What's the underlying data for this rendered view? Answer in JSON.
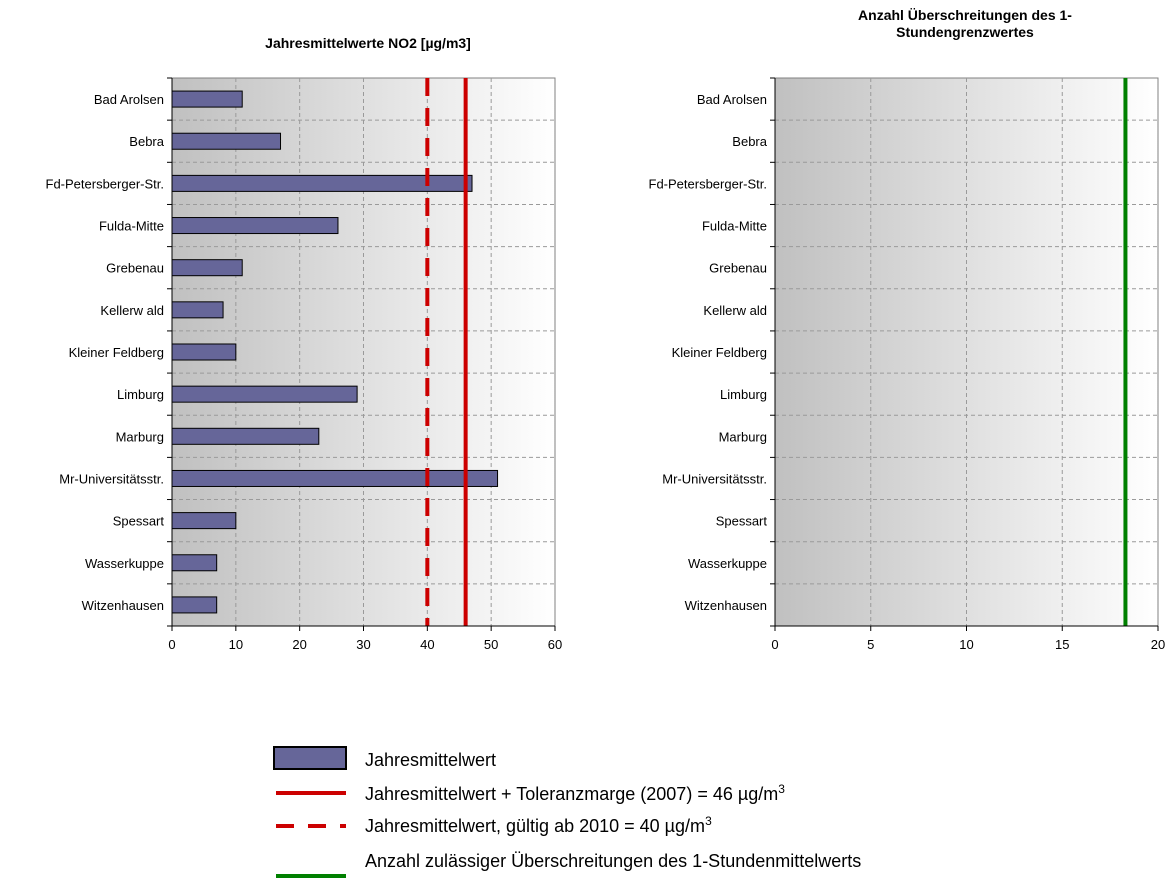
{
  "chart_data": [
    {
      "type": "bar",
      "orientation": "horizontal",
      "title": "Jahresmittelwerte NO2 [µg/m3]",
      "categories": [
        "Bad Arolsen",
        "Bebra",
        "Fd-Petersberger-Str.",
        "Fulda-Mitte",
        "Grebenau",
        "Kellerw ald",
        "Kleiner Feldberg",
        "Limburg",
        "Marburg",
        "Mr-Universitätsstr.",
        "Spessart",
        "Wasserkuppe",
        "Witzenhausen"
      ],
      "series": [
        {
          "name": "Jahresmittelwert",
          "values": [
            11,
            17,
            47,
            26,
            11,
            8,
            10,
            29,
            23,
            51,
            10,
            7,
            7
          ],
          "color": "#666699"
        }
      ],
      "reference_lines": [
        {
          "name": "Jahresmittelwert + Toleranzmarge (2007)  =  46 µg/m3",
          "value": 46,
          "style": "solid",
          "color": "#cc0000"
        },
        {
          "name": "Jahresmittelwert, gültig ab 2010  =  40 µg/m3",
          "value": 40,
          "style": "dashed",
          "color": "#cc0000"
        }
      ],
      "xlim": [
        0,
        60
      ],
      "xticks": [
        "0",
        "10",
        "20",
        "30",
        "40",
        "50",
        "60"
      ],
      "grid": true
    },
    {
      "type": "bar",
      "orientation": "horizontal",
      "title_lines": [
        "Anzahl Überschreitungen des 1-",
        "Stundengrenzwertes"
      ],
      "categories": [
        "Bad Arolsen",
        "Bebra",
        "Fd-Petersberger-Str.",
        "Fulda-Mitte",
        "Grebenau",
        "Kellerw ald",
        "Kleiner Feldberg",
        "Limburg",
        "Marburg",
        "Mr-Universitätsstr.",
        "Spessart",
        "Wasserkuppe",
        "Witzenhausen"
      ],
      "series": [
        {
          "values": [
            0,
            0,
            0,
            0,
            0,
            0,
            0,
            0,
            0,
            0,
            0,
            0,
            0
          ]
        }
      ],
      "reference_lines": [
        {
          "name": "Anzahl zulässiger Überschreitungen des 1-Stundenmittelwerts",
          "value": 18.3,
          "style": "solid",
          "color": "#008000"
        }
      ],
      "xlim": [
        0,
        20
      ],
      "xticks": [
        "0",
        "5",
        "10",
        "15",
        "20"
      ],
      "grid": true
    }
  ],
  "legend": {
    "placement": "bottom-center",
    "items": [
      {
        "kind": "bar",
        "label": "Jahresmittelwert",
        "color": "#666699"
      },
      {
        "kind": "solid-line",
        "label_main": "Jahresmittelwert + Toleranzmarge (2007)  =  46 µg/m",
        "label_sup": "3",
        "color": "#cc0000"
      },
      {
        "kind": "dashed-line",
        "label_main": "Jahresmittelwert, gültig ab 2010  =  40 µg/m",
        "label_sup": "3",
        "color": "#cc0000"
      },
      {
        "kind": "solid-line",
        "label_main": "Anzahl zulässiger Überschreitungen des 1-Stundenmittelwerts",
        "label_sup": "",
        "color": "#008000"
      }
    ]
  }
}
